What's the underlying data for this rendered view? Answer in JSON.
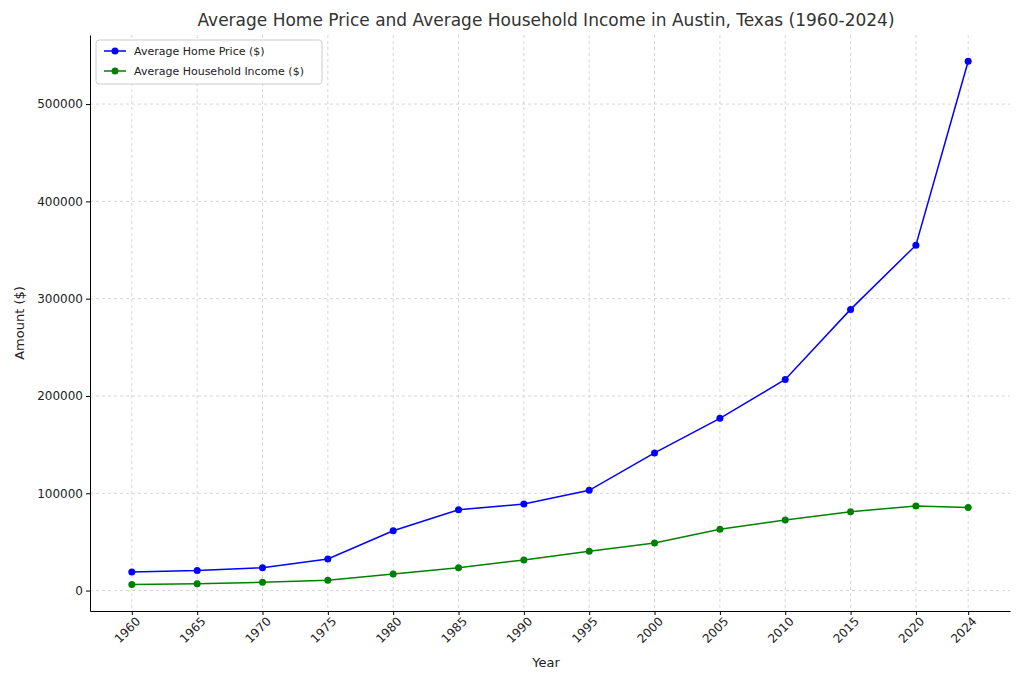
{
  "chart_data": {
    "type": "line",
    "title": "Average Home Price and Average Household Income in Austin, Texas (1960-2024)",
    "x_label": "Year",
    "y_label": "Amount ($)",
    "x": [
      1960,
      1965,
      1970,
      1975,
      1980,
      1985,
      1990,
      1995,
      2000,
      2005,
      2010,
      2015,
      2020,
      2024
    ],
    "series": [
      {
        "name": "Average Home Price ($)",
        "color": "#0000ff",
        "marker": "circle",
        "line_style": "solid",
        "values": [
          19000,
          20500,
          23500,
          32500,
          61500,
          83000,
          89000,
          103000,
          141500,
          177000,
          217000,
          289000,
          355000,
          544000
        ]
      },
      {
        "name": "Average Household Income ($)",
        "color": "#008000",
        "marker": "circle",
        "line_style": "solid",
        "values": [
          6200,
          7000,
          8500,
          10500,
          17000,
          23500,
          31500,
          40500,
          49000,
          63000,
          72500,
          81000,
          87000,
          85500
        ]
      }
    ],
    "xlim": [
      1956.8,
      2027.2
    ],
    "xticks": [
      1960,
      1965,
      1970,
      1975,
      1980,
      1985,
      1990,
      1995,
      2000,
      2005,
      2010,
      2015,
      2020,
      2024
    ],
    "ylim": [
      -21000,
      571000
    ],
    "yticks": [
      0,
      100000,
      200000,
      300000,
      400000,
      500000
    ],
    "grid": true,
    "legend": "upper left"
  }
}
